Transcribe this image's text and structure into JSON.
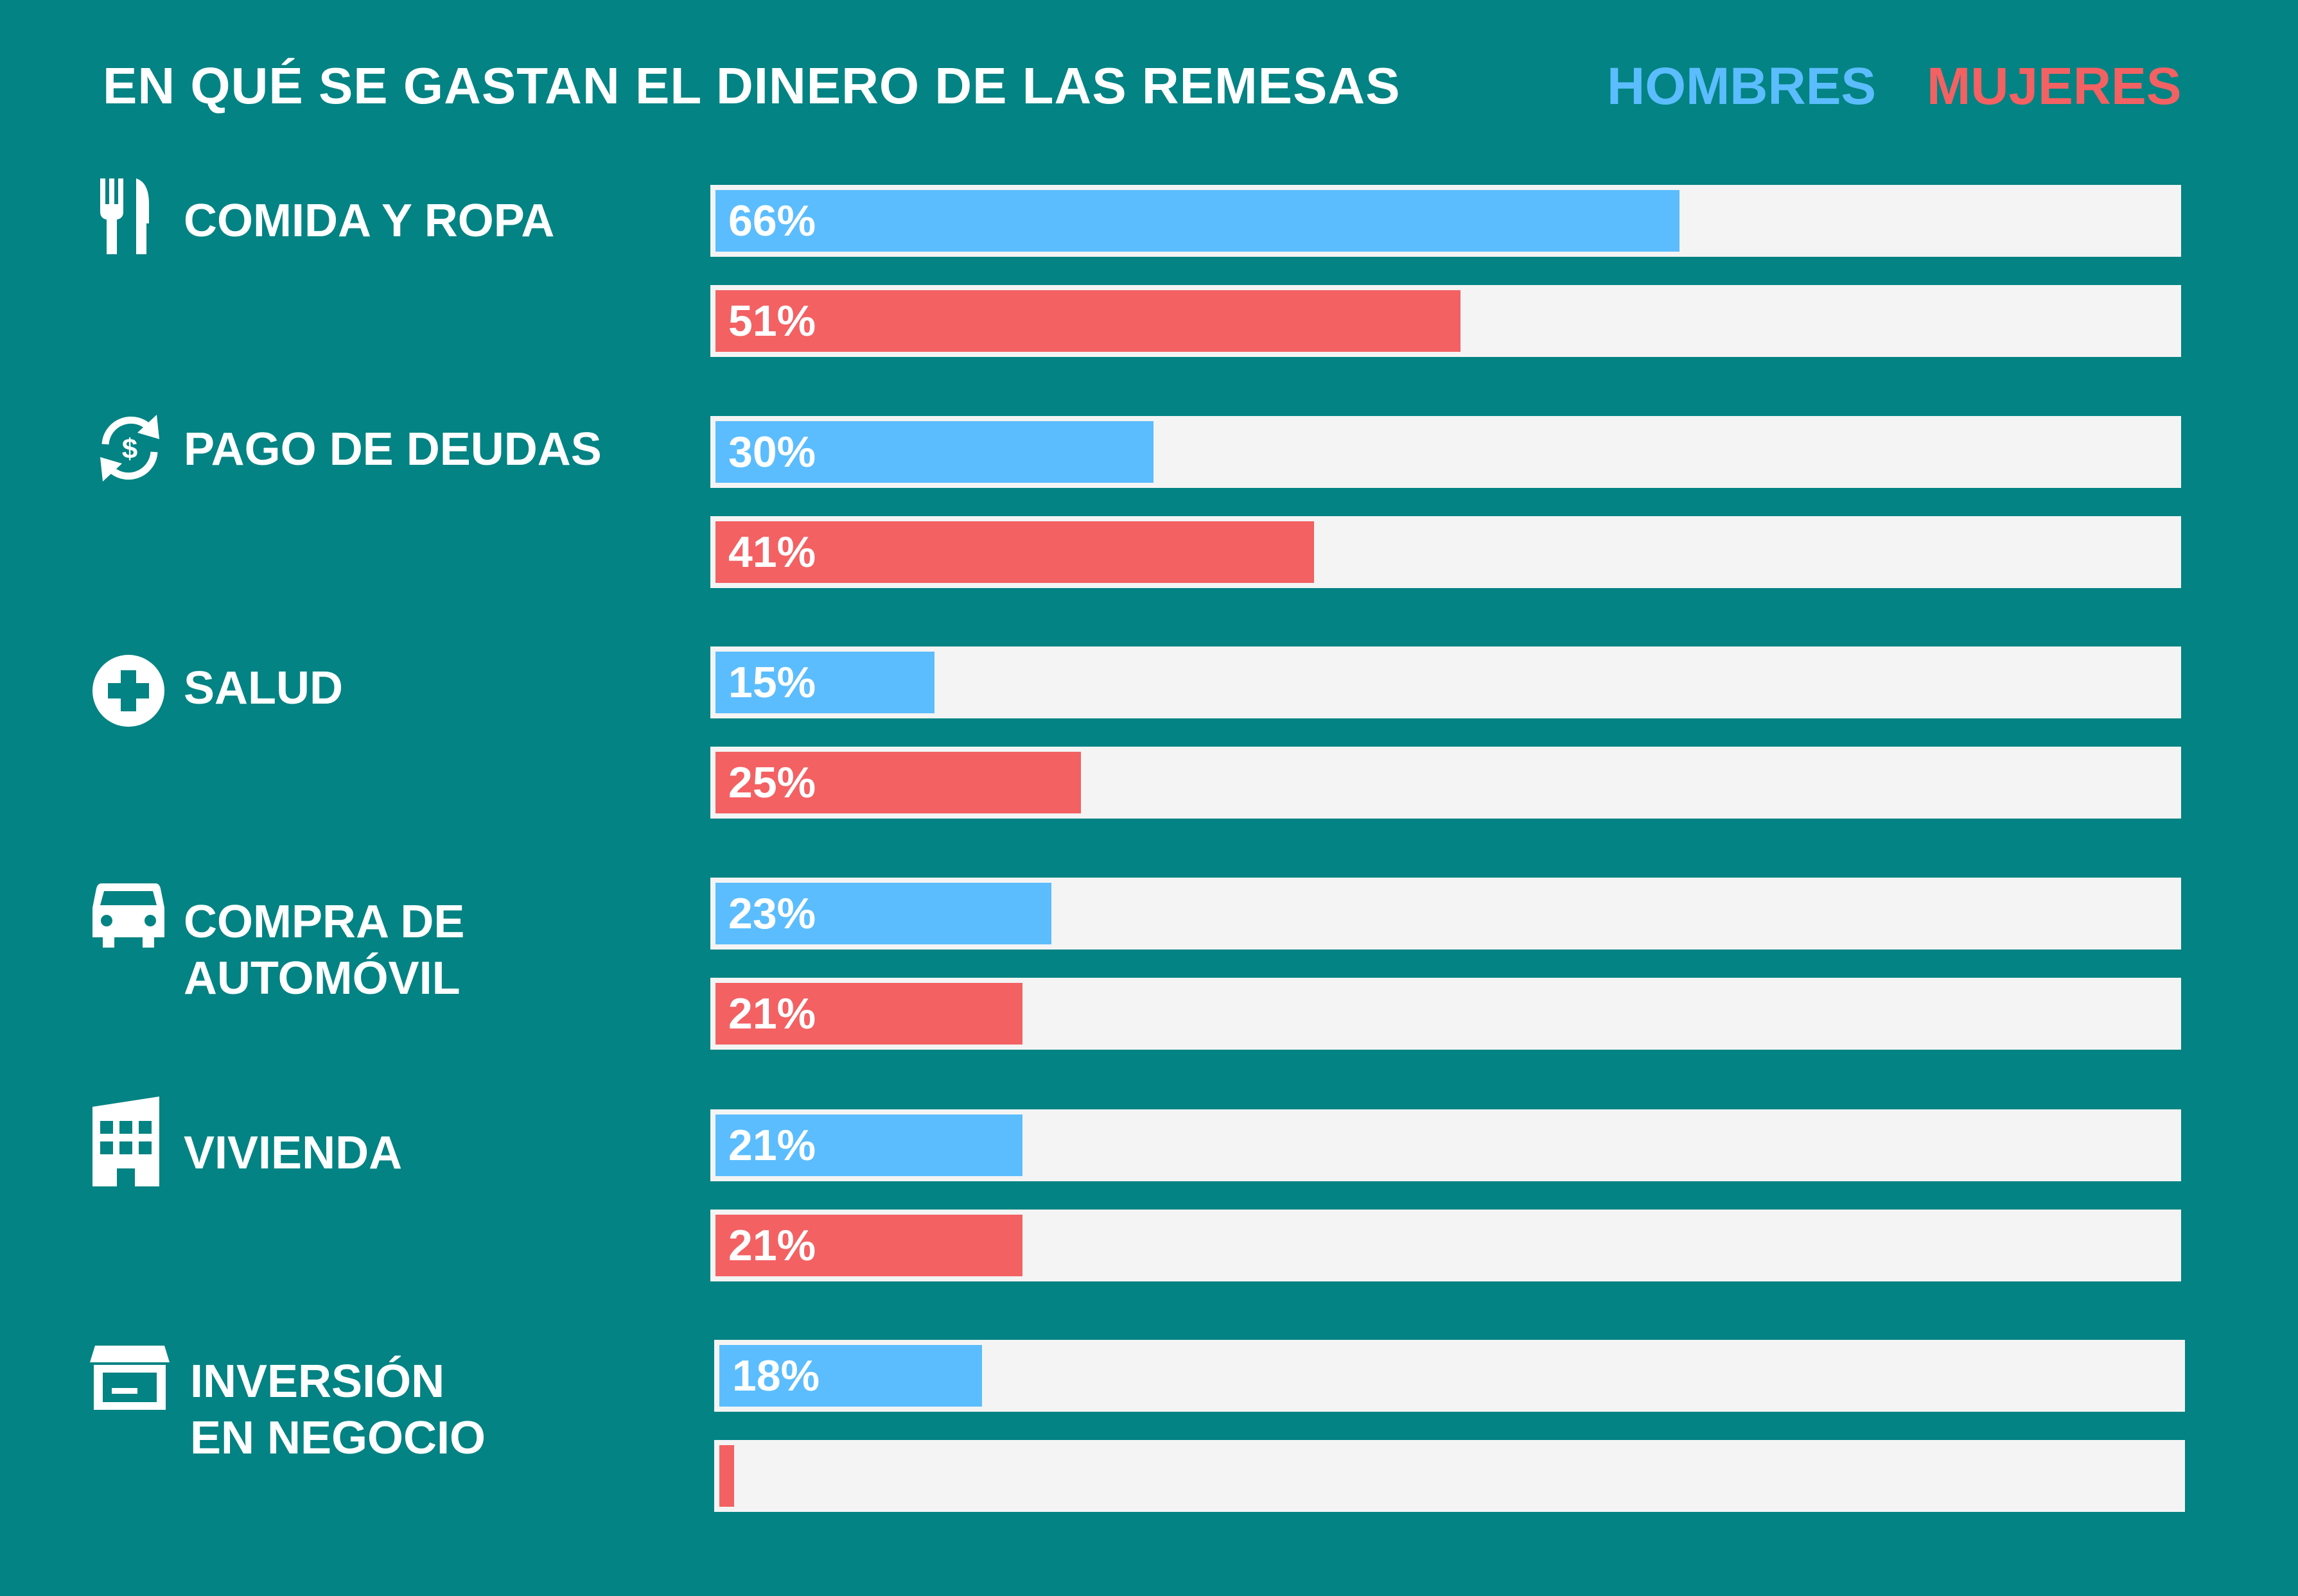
{
  "chart_data": {
    "type": "bar",
    "orientation": "horizontal",
    "title": "EN QUÉ SE GASTAN EL DINERO DE LAS REMESAS",
    "xlim": [
      0,
      100
    ],
    "legend": {
      "position": "top-right"
    },
    "categories": [
      {
        "label_lines": [
          "COMIDA Y ROPA"
        ],
        "icon": "fork-knife-icon"
      },
      {
        "label_lines": [
          "PAGO DE DEUDAS"
        ],
        "icon": "dollar-cycle-icon"
      },
      {
        "label_lines": [
          "SALUD"
        ],
        "icon": "medical-cross-icon"
      },
      {
        "label_lines": [
          "COMPRA DE",
          "AUTOMÓVIL"
        ],
        "icon": "car-icon"
      },
      {
        "label_lines": [
          "VIVIENDA"
        ],
        "icon": "building-icon"
      },
      {
        "label_lines": [
          "INVERSIÓN",
          "EN NEGOCIO"
        ],
        "icon": "storefront-icon"
      }
    ],
    "series": [
      {
        "name": "HOMBRES",
        "color": "#5bbdfe",
        "values": [
          66,
          30,
          15,
          23,
          21,
          18
        ],
        "labels": [
          "66%",
          "30%",
          "15%",
          "23%",
          "21%",
          "18%"
        ]
      },
      {
        "name": "MUJERES",
        "color": "#f36163",
        "values": [
          51,
          41,
          25,
          21,
          21,
          1
        ],
        "labels": [
          "51%",
          "41%",
          "25%",
          "21%",
          "21%",
          ""
        ]
      }
    ]
  },
  "colors": {
    "background": "#038383",
    "track": "#f4f4f4",
    "text": "#ffffff"
  }
}
